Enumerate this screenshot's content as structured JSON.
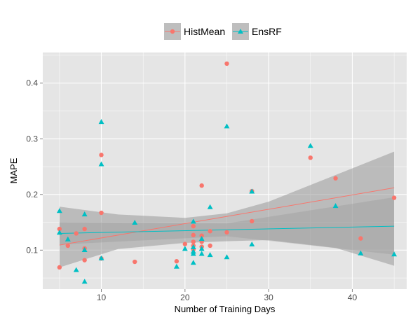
{
  "chart_data": {
    "type": "scatter",
    "title": "",
    "xlabel": "Number of Training Days",
    "ylabel": "MAPE",
    "xlim": [
      3,
      46.5
    ],
    "ylim": [
      0.03,
      0.455
    ],
    "x_ticks": [
      10,
      20,
      30,
      40
    ],
    "x_tick_labels": [
      "10",
      "20",
      "30",
      "40"
    ],
    "y_ticks": [
      0.1,
      0.2,
      0.3,
      0.4
    ],
    "y_tick_labels": [
      "0.1",
      "0.2",
      "0.3",
      "0.4"
    ],
    "grid": true,
    "legend_position": "top",
    "series": [
      {
        "name": "HistMean",
        "color": "#F8766D",
        "marker": "circle",
        "points": [
          [
            5,
            0.138
          ],
          [
            5,
            0.069
          ],
          [
            6,
            0.108
          ],
          [
            7,
            0.13
          ],
          [
            8,
            0.138
          ],
          [
            8,
            0.103
          ],
          [
            8,
            0.082
          ],
          [
            10,
            0.271
          ],
          [
            10,
            0.167
          ],
          [
            10,
            0.085
          ],
          [
            14,
            0.079
          ],
          [
            19,
            0.08
          ],
          [
            20,
            0.111
          ],
          [
            21,
            0.143
          ],
          [
            21,
            0.127
          ],
          [
            21,
            0.115
          ],
          [
            21,
            0.108
          ],
          [
            21,
            0.101
          ],
          [
            22,
            0.216
          ],
          [
            22,
            0.126
          ],
          [
            22,
            0.115
          ],
          [
            22,
            0.106
          ],
          [
            23,
            0.134
          ],
          [
            23,
            0.108
          ],
          [
            25,
            0.435
          ],
          [
            25,
            0.132
          ],
          [
            28,
            0.206
          ],
          [
            28,
            0.152
          ],
          [
            35,
            0.266
          ],
          [
            38,
            0.229
          ],
          [
            41,
            0.121
          ],
          [
            45,
            0.194
          ]
        ],
        "trend": {
          "x": [
            5,
            45
          ],
          "y": [
            0.109,
            0.212
          ]
        },
        "band": {
          "x": [
            5,
            12,
            20,
            25,
            30,
            38,
            45
          ],
          "lower": [
            0.069,
            0.102,
            0.113,
            0.116,
            0.118,
            0.104,
            0.072
          ],
          "upper": [
            0.178,
            0.164,
            0.158,
            0.166,
            0.187,
            0.235,
            0.277
          ]
        }
      },
      {
        "name": "EnsRF",
        "color": "#00BFC4",
        "marker": "triangle",
        "points": [
          [
            5,
            0.17
          ],
          [
            5,
            0.131
          ],
          [
            6,
            0.119
          ],
          [
            7,
            0.064
          ],
          [
            8,
            0.164
          ],
          [
            8,
            0.1
          ],
          [
            8,
            0.043
          ],
          [
            10,
            0.33
          ],
          [
            10,
            0.254
          ],
          [
            10,
            0.085
          ],
          [
            14,
            0.149
          ],
          [
            19,
            0.07
          ],
          [
            20,
            0.102
          ],
          [
            21,
            0.151
          ],
          [
            21,
            0.105
          ],
          [
            21,
            0.097
          ],
          [
            21,
            0.093
          ],
          [
            21,
            0.077
          ],
          [
            22,
            0.12
          ],
          [
            22,
            0.102
          ],
          [
            22,
            0.093
          ],
          [
            23,
            0.177
          ],
          [
            23,
            0.091
          ],
          [
            25,
            0.322
          ],
          [
            25,
            0.087
          ],
          [
            28,
            0.205
          ],
          [
            28,
            0.11
          ],
          [
            35,
            0.287
          ],
          [
            38,
            0.179
          ],
          [
            41,
            0.094
          ],
          [
            45,
            0.092
          ]
        ],
        "trend": {
          "x": [
            5,
            45
          ],
          "y": [
            0.13,
            0.143
          ]
        }
      }
    ]
  }
}
